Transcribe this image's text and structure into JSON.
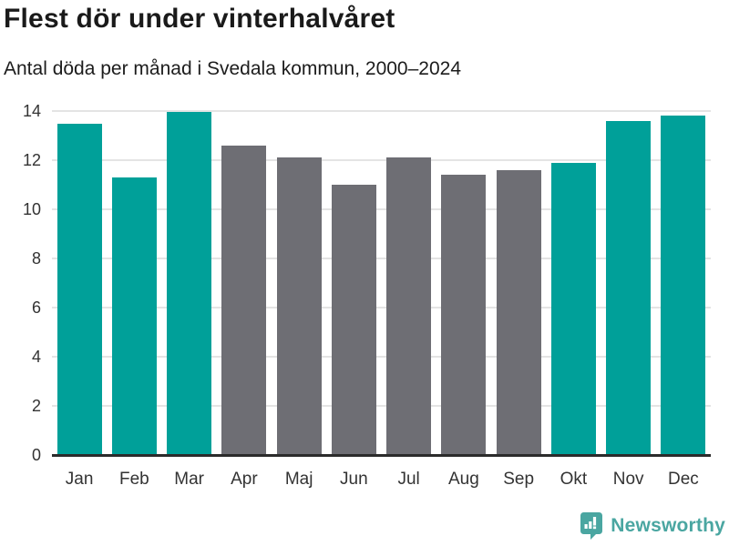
{
  "chart_data": {
    "type": "bar",
    "title": "Flest dör under vinterhalvåret",
    "subtitle": "Antal döda per månad i Svedala kommun, 2000–2024",
    "categories": [
      "Jan",
      "Feb",
      "Mar",
      "Apr",
      "Maj",
      "Jun",
      "Jul",
      "Aug",
      "Sep",
      "Okt",
      "Nov",
      "Dec"
    ],
    "values": [
      13.5,
      11.3,
      13.95,
      12.6,
      12.1,
      11.0,
      12.1,
      11.4,
      11.6,
      11.9,
      13.6,
      13.8
    ],
    "highlighted": [
      true,
      true,
      true,
      false,
      false,
      false,
      false,
      false,
      false,
      true,
      true,
      true
    ],
    "ylim": [
      0,
      14
    ],
    "yticks": [
      0,
      2,
      4,
      6,
      8,
      10,
      12,
      14
    ],
    "grid": true,
    "legend_position": "none",
    "colors": {
      "highlight": "#00a099",
      "base": "#6e6e74",
      "gridline": "#e4e4e4",
      "axis": "#2b2b2b"
    }
  },
  "branding": {
    "logo_label": "Newsworthy",
    "logo_icon": "newsworthy-speech-bubble-barchart-icon",
    "color": "#4aa6a1"
  }
}
